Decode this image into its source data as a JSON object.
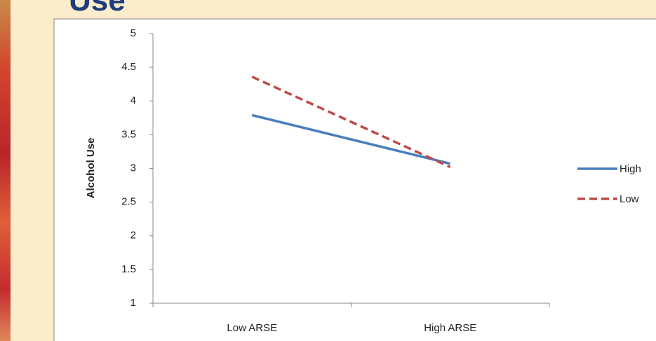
{
  "chart_data": {
    "type": "line",
    "title": "Use",
    "y_label": "Alcohol Use",
    "categories": [
      "Low ARSE",
      "High ARSE"
    ],
    "series": [
      {
        "name": "High",
        "color": "#4a7ebb",
        "style": "solid",
        "values": [
          3.79,
          3.07
        ]
      },
      {
        "name": "Low",
        "color": "#be4b48",
        "style": "dashed",
        "values": [
          4.36,
          3.02
        ]
      }
    ],
    "ylim": [
      1,
      5
    ],
    "yticks": [
      1,
      1.5,
      2,
      2.5,
      3,
      3.5,
      4,
      4.5,
      5
    ],
    "grid": false,
    "legend": "right"
  }
}
